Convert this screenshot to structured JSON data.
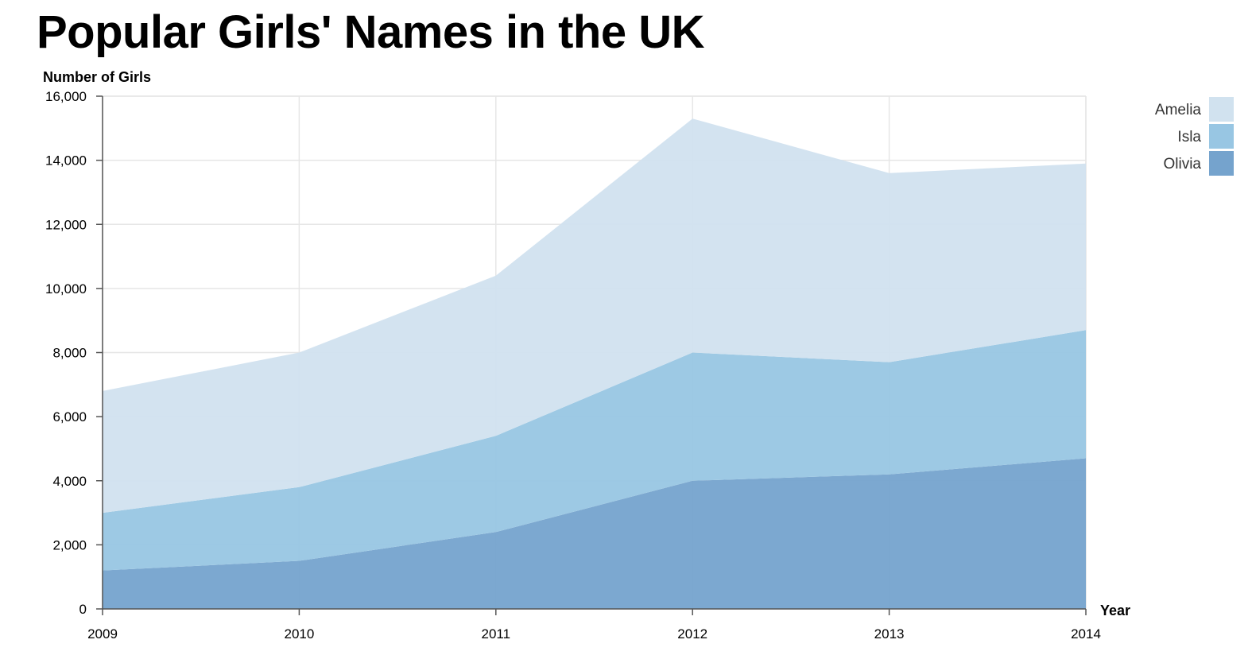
{
  "chart_data": {
    "type": "area",
    "stacked": true,
    "title": "Popular Girls' Names in the UK",
    "xlabel": "Year",
    "ylabel": "Number of Girls",
    "x": [
      2009,
      2010,
      2011,
      2012,
      2013,
      2014
    ],
    "x_tick_labels": [
      "2009",
      "2010",
      "2011",
      "2012",
      "2013",
      "2014"
    ],
    "ylim": [
      0,
      16000
    ],
    "y_ticks": [
      0,
      2000,
      4000,
      6000,
      8000,
      10000,
      12000,
      14000,
      16000
    ],
    "y_tick_labels": [
      "0",
      "2,000",
      "4,000",
      "6,000",
      "8,000",
      "10,000",
      "12,000",
      "14,000",
      "16,000"
    ],
    "grid": true,
    "legend_position": "top-right",
    "series": [
      {
        "name": "Olivia",
        "color": "#75a3cd",
        "values": [
          1200,
          1500,
          2400,
          4000,
          4200,
          4700
        ]
      },
      {
        "name": "Isla",
        "color": "#98c6e3",
        "values": [
          1800,
          2300,
          3000,
          4000,
          3500,
          4000
        ]
      },
      {
        "name": "Amelia",
        "color": "#d1e2ef",
        "values": [
          3800,
          4200,
          5000,
          7300,
          5900,
          5200
        ]
      }
    ]
  }
}
